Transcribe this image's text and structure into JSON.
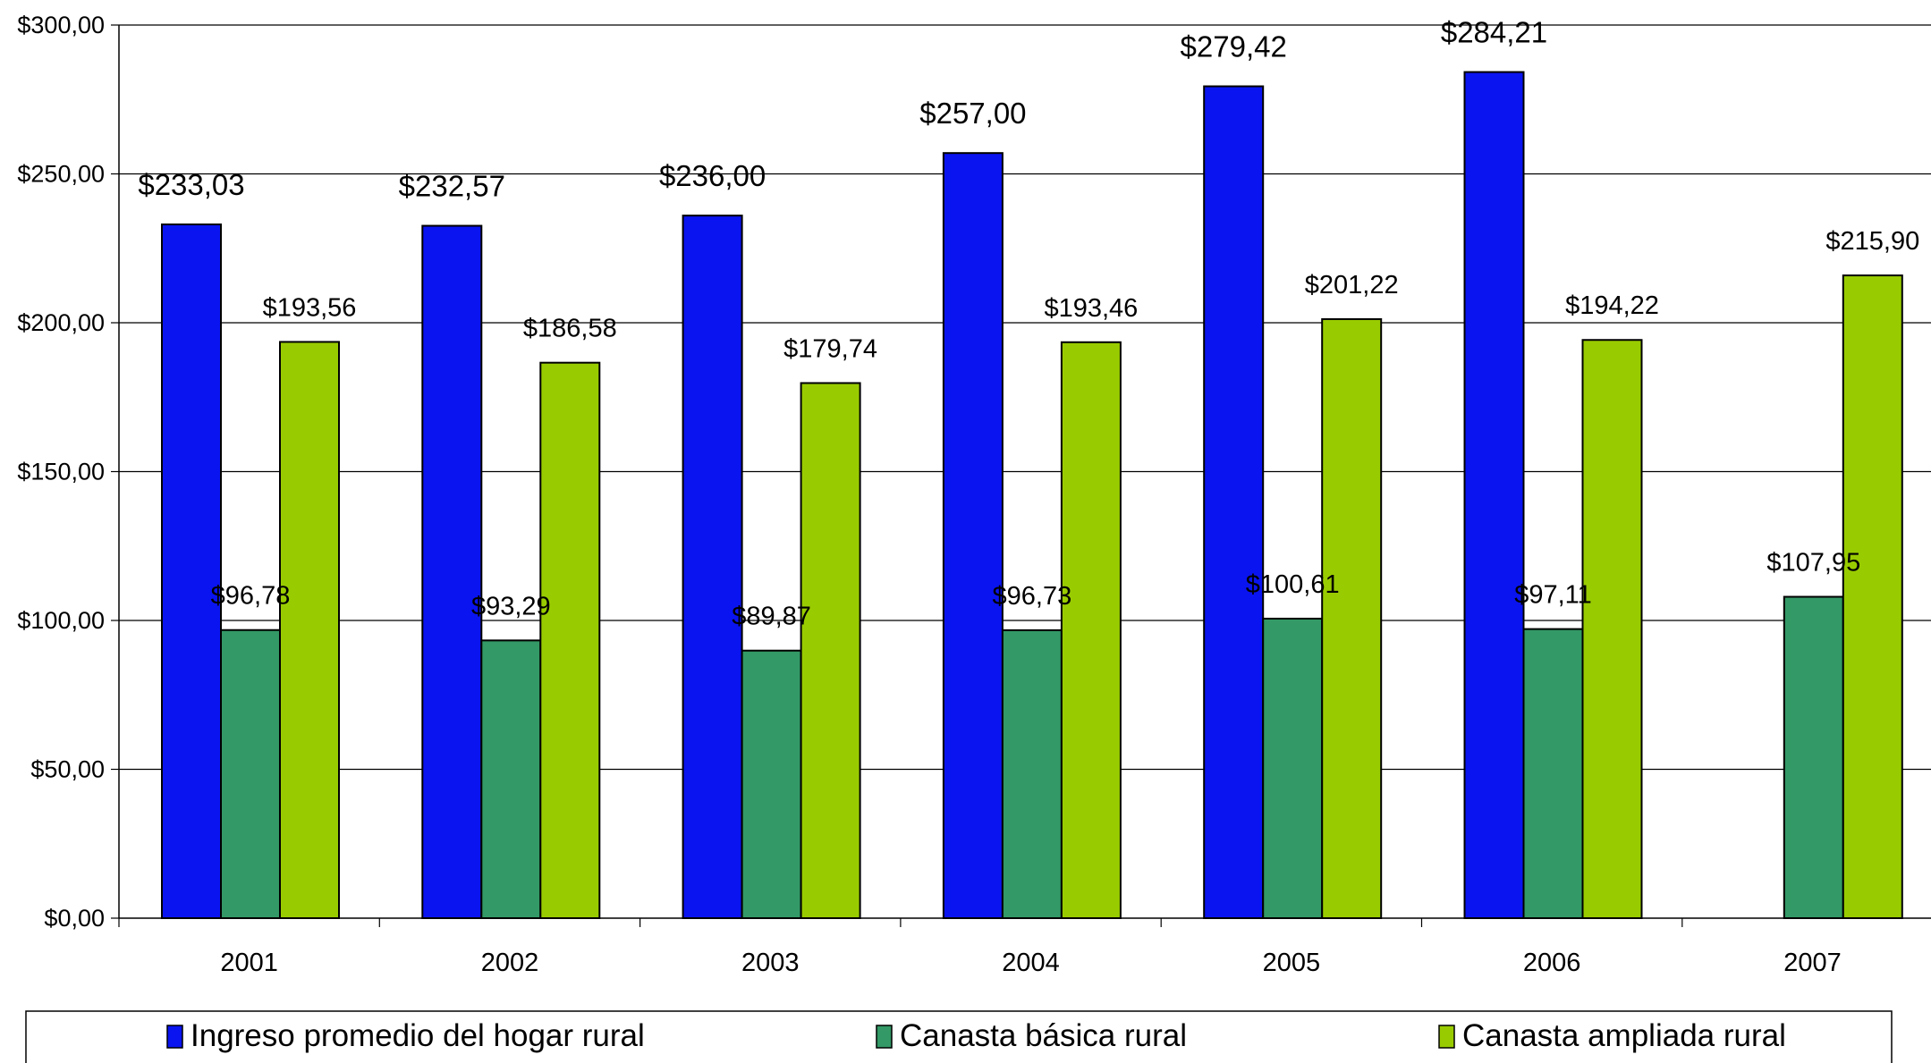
{
  "chart_data": {
    "type": "bar",
    "categories": [
      "2001",
      "2002",
      "2003",
      "2004",
      "2005",
      "2006",
      "2007"
    ],
    "series": [
      {
        "name": "Ingreso promedio del hogar rural",
        "color": "#0A14F0",
        "values": [
          233.03,
          232.57,
          236.0,
          257.0,
          279.42,
          284.21,
          null
        ],
        "labels": [
          "$233,03",
          "$232,57",
          "$236,00",
          "$257,00",
          "$279,42",
          "$284,21",
          null
        ]
      },
      {
        "name": "Canasta básica rural",
        "color": "#339966",
        "values": [
          96.78,
          93.29,
          89.87,
          96.73,
          100.61,
          97.11,
          107.95
        ],
        "labels": [
          "$96,78",
          "$93,29",
          "$89,87",
          "$96,73",
          "$100,61",
          "$97,11",
          "$107,95"
        ]
      },
      {
        "name": "Canasta ampliada rural",
        "color": "#99CC00",
        "values": [
          193.56,
          186.58,
          179.74,
          193.46,
          201.22,
          194.22,
          215.9
        ],
        "labels": [
          "$193,56",
          "$186,58",
          "$179,74",
          "$193,46",
          "$201,22",
          "$194,22",
          "$215,90"
        ]
      }
    ],
    "yticks": [
      {
        "value": 0,
        "label": "$0,00"
      },
      {
        "value": 50,
        "label": "$50,00"
      },
      {
        "value": 100,
        "label": "$100,00"
      },
      {
        "value": 150,
        "label": "$150,00"
      },
      {
        "value": 200,
        "label": "$200,00"
      },
      {
        "value": 250,
        "label": "$250,00"
      },
      {
        "value": 300,
        "label": "$300,00"
      }
    ],
    "ylim": [
      0,
      300
    ],
    "grid": true,
    "legend_position": "bottom"
  }
}
